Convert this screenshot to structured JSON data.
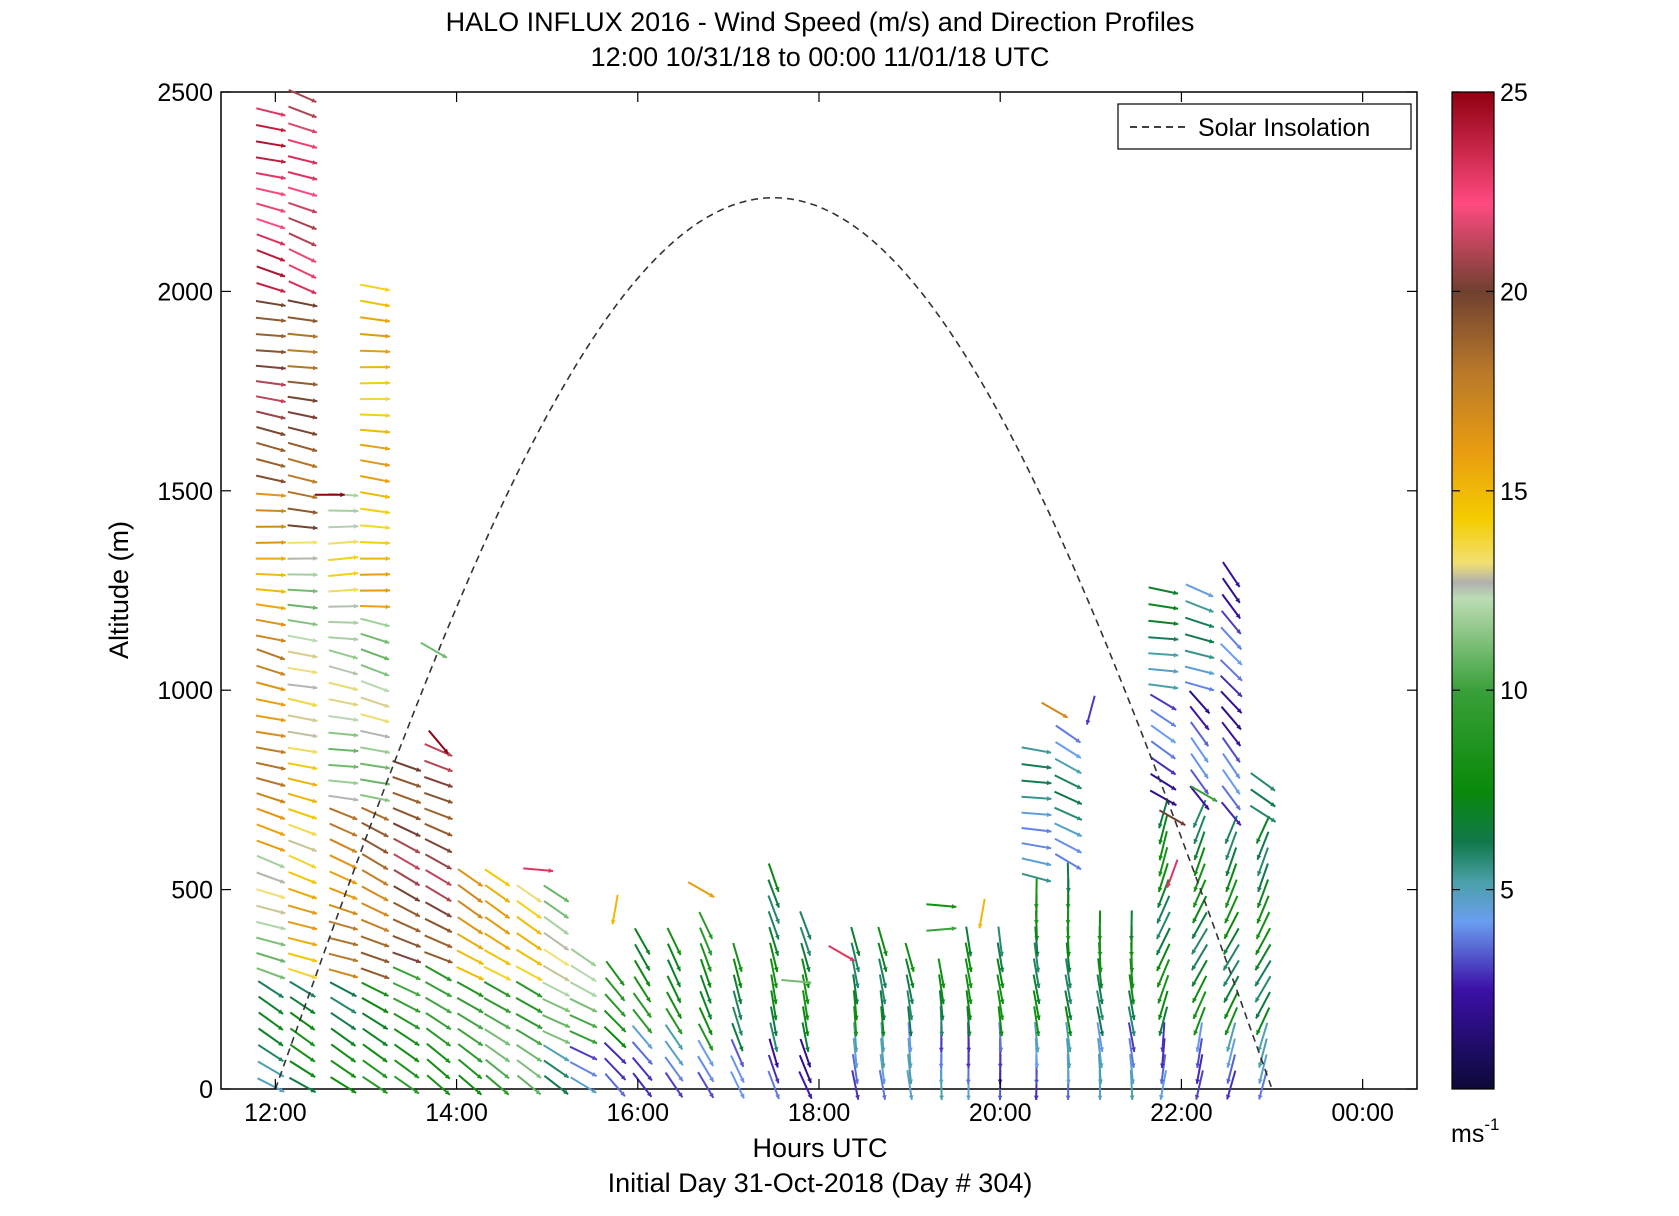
{
  "chart_data": {
    "type": "vector-field",
    "title": "HALO INFLUX 2016 - Wind Speed (m/s) and Direction Profiles",
    "subtitle": "12:00 10/31/18 to 00:00 11/01/18  UTC",
    "xlabel": "Hours UTC",
    "ylabel": "Altitude (m)",
    "footer": "Initial Day 31-Oct-2018 (Day # 304)",
    "xlim": [
      11.4,
      24.6
    ],
    "ylim": [
      0,
      2500
    ],
    "x_ticks": [
      {
        "value": 12,
        "label": "12:00"
      },
      {
        "value": 14,
        "label": "14:00"
      },
      {
        "value": 16,
        "label": "16:00"
      },
      {
        "value": 18,
        "label": "18:00"
      },
      {
        "value": 20,
        "label": "20:00"
      },
      {
        "value": 22,
        "label": "22:00"
      },
      {
        "value": 24,
        "label": "00:00"
      }
    ],
    "y_ticks": [
      {
        "value": 0,
        "label": "0"
      },
      {
        "value": 500,
        "label": "500"
      },
      {
        "value": 1000,
        "label": "1000"
      },
      {
        "value": 1500,
        "label": "1500"
      },
      {
        "value": 2000,
        "label": "2000"
      },
      {
        "value": 2500,
        "label": "2500"
      }
    ],
    "legend": {
      "position": "top-right",
      "entries": [
        {
          "name": "Solar Insolation",
          "style": "dashed",
          "color": "#000000"
        }
      ]
    },
    "solar_insolation": {
      "rise_hour": 12.0,
      "set_hour": 23.0,
      "peak_hour": 17.5,
      "peak_altitude": 2235
    },
    "colorbar": {
      "range": [
        0,
        25
      ],
      "ticks": [
        {
          "value": 5,
          "label": "5"
        },
        {
          "value": 10,
          "label": "10"
        },
        {
          "value": 15,
          "label": "15"
        },
        {
          "value": 20,
          "label": "20"
        },
        {
          "value": 25,
          "label": "25"
        }
      ],
      "unit": "ms",
      "unit_superscript": "-1",
      "stops": [
        {
          "v": 0,
          "c": "#0c0a38"
        },
        {
          "v": 2.5,
          "c": "#3c10a8"
        },
        {
          "v": 4.2,
          "c": "#6a9ef0"
        },
        {
          "v": 5.2,
          "c": "#4aa0a8"
        },
        {
          "v": 6.2,
          "c": "#10784a"
        },
        {
          "v": 7.5,
          "c": "#0a8a0a"
        },
        {
          "v": 10,
          "c": "#3aa03a"
        },
        {
          "v": 12.3,
          "c": "#bcdcb4"
        },
        {
          "v": 12.7,
          "c": "#b0b0b0"
        },
        {
          "v": 13.2,
          "c": "#f2e070"
        },
        {
          "v": 14.3,
          "c": "#f4cc00"
        },
        {
          "v": 16,
          "c": "#e89c10"
        },
        {
          "v": 18,
          "c": "#b8782a"
        },
        {
          "v": 20,
          "c": "#704030"
        },
        {
          "v": 22.2,
          "c": "#ff4a80"
        },
        {
          "v": 25,
          "c": "#900010"
        }
      ]
    },
    "profiles": [
      {
        "hour": 11.95,
        "alt_min": 0,
        "alt_max": 2480,
        "alt_step": 40,
        "segments": [
          [
            0,
            250,
            6,
            300
          ],
          [
            250,
            600,
            12,
            290
          ],
          [
            600,
            1100,
            17,
            285
          ],
          [
            1100,
            1500,
            16,
            275
          ],
          [
            1500,
            2000,
            20,
            280
          ],
          [
            2000,
            2480,
            23,
            285
          ]
        ]
      },
      {
        "hour": 12.3,
        "alt_min": 0,
        "alt_max": 2500,
        "alt_step": 40,
        "segments": [
          [
            0,
            250,
            7,
            300
          ],
          [
            250,
            600,
            15,
            290
          ],
          [
            600,
            1000,
            14,
            285
          ],
          [
            1000,
            1400,
            12,
            275
          ],
          [
            1400,
            2000,
            19,
            280
          ],
          [
            2000,
            2500,
            22,
            290
          ]
        ]
      },
      {
        "hour": 12.75,
        "alt_min": 0,
        "alt_max": 1500,
        "alt_step": 40,
        "segments": [
          [
            0,
            250,
            7,
            300
          ],
          [
            250,
            700,
            17,
            290
          ],
          [
            700,
            1100,
            12,
            280
          ],
          [
            1100,
            1500,
            13,
            270
          ]
        ]
      },
      {
        "hour": 13.1,
        "alt_min": 0,
        "alt_max": 2040,
        "alt_step": 40,
        "segments": [
          [
            0,
            250,
            8,
            300
          ],
          [
            250,
            700,
            18,
            295
          ],
          [
            700,
            1200,
            12,
            285
          ],
          [
            1200,
            2040,
            15,
            275
          ]
        ]
      },
      {
        "hour": 13.45,
        "alt_min": 0,
        "alt_max": 830,
        "alt_step": 40,
        "segments": [
          [
            0,
            300,
            9,
            300
          ],
          [
            300,
            830,
            20,
            295
          ]
        ]
      },
      {
        "hour": 13.8,
        "alt_min": 0,
        "alt_max": 870,
        "alt_step": 40,
        "segments": [
          [
            0,
            300,
            9,
            305
          ],
          [
            300,
            870,
            20,
            295
          ]
        ]
      },
      {
        "hour": 14.15,
        "alt_min": 0,
        "alt_max": 550,
        "alt_step": 40,
        "segments": [
          [
            0,
            250,
            9,
            305
          ],
          [
            250,
            550,
            16,
            300
          ]
        ]
      },
      {
        "hour": 14.45,
        "alt_min": 0,
        "alt_max": 540,
        "alt_step": 40,
        "segments": [
          [
            0,
            250,
            10,
            305
          ],
          [
            250,
            540,
            15,
            300
          ]
        ]
      },
      {
        "hour": 14.8,
        "alt_min": 0,
        "alt_max": 500,
        "alt_step": 40,
        "segments": [
          [
            0,
            250,
            10,
            305
          ],
          [
            250,
            500,
            14,
            300
          ]
        ]
      },
      {
        "hour": 15.1,
        "alt_min": 0,
        "alt_max": 490,
        "alt_step": 40,
        "segments": [
          [
            0,
            120,
            5,
            305
          ],
          [
            120,
            490,
            12,
            300
          ]
        ]
      },
      {
        "hour": 15.4,
        "alt_min": 0,
        "alt_max": 360,
        "alt_step": 40,
        "segments": [
          [
            0,
            120,
            4,
            300
          ],
          [
            120,
            360,
            11,
            300
          ]
        ]
      },
      {
        "hour": 15.75,
        "alt_min": 0,
        "alt_max": 300,
        "alt_step": 40,
        "segments": [
          [
            0,
            120,
            4,
            320
          ],
          [
            120,
            300,
            8,
            320
          ]
        ]
      },
      {
        "hour": 16.05,
        "alt_min": 0,
        "alt_max": 400,
        "alt_step": 40,
        "segments": [
          [
            0,
            150,
            4,
            325
          ],
          [
            150,
            400,
            8,
            325
          ]
        ]
      },
      {
        "hour": 16.4,
        "alt_min": 0,
        "alt_max": 400,
        "alt_step": 40,
        "segments": [
          [
            0,
            150,
            4,
            330
          ],
          [
            150,
            400,
            8,
            330
          ]
        ]
      },
      {
        "hour": 16.75,
        "alt_min": 0,
        "alt_max": 420,
        "alt_step": 40,
        "segments": [
          [
            0,
            120,
            3,
            335
          ],
          [
            120,
            420,
            8,
            335
          ]
        ]
      },
      {
        "hour": 17.1,
        "alt_min": 0,
        "alt_max": 360,
        "alt_step": 40,
        "segments": [
          [
            0,
            120,
            3,
            340
          ],
          [
            120,
            360,
            7,
            340
          ]
        ]
      },
      {
        "hour": 17.5,
        "alt_min": 0,
        "alt_max": 540,
        "alt_step": 40,
        "segments": [
          [
            0,
            120,
            3,
            345
          ],
          [
            120,
            540,
            7,
            345
          ]
        ]
      },
      {
        "hour": 17.85,
        "alt_min": 0,
        "alt_max": 420,
        "alt_step": 40,
        "segments": [
          [
            0,
            120,
            3,
            340
          ],
          [
            120,
            420,
            7,
            345
          ]
        ]
      },
      {
        "hour": 18.4,
        "alt_min": 0,
        "alt_max": 380,
        "alt_step": 40,
        "segments": [
          [
            0,
            150,
            4,
            350
          ],
          [
            150,
            380,
            7,
            350
          ]
        ]
      },
      {
        "hour": 18.7,
        "alt_min": 0,
        "alt_max": 400,
        "alt_step": 40,
        "segments": [
          [
            0,
            150,
            4,
            350
          ],
          [
            150,
            400,
            7,
            350
          ]
        ]
      },
      {
        "hour": 19.0,
        "alt_min": 0,
        "alt_max": 360,
        "alt_step": 40,
        "segments": [
          [
            0,
            150,
            4,
            350
          ],
          [
            150,
            360,
            7,
            350
          ]
        ]
      },
      {
        "hour": 19.35,
        "alt_min": 0,
        "alt_max": 320,
        "alt_step": 40,
        "segments": [
          [
            0,
            150,
            4,
            355
          ],
          [
            150,
            320,
            7,
            355
          ]
        ]
      },
      {
        "hour": 19.65,
        "alt_min": 0,
        "alt_max": 380,
        "alt_step": 40,
        "segments": [
          [
            0,
            150,
            4,
            355
          ],
          [
            150,
            380,
            7,
            355
          ]
        ]
      },
      {
        "hour": 20.0,
        "alt_min": 0,
        "alt_max": 400,
        "alt_step": 40,
        "segments": [
          [
            0,
            150,
            4,
            355
          ],
          [
            150,
            400,
            7,
            355
          ]
        ]
      },
      {
        "hour": 20.4,
        "alt_min": 0,
        "alt_max": 880,
        "alt_step": 40,
        "segments": [
          [
            0,
            150,
            4,
            355
          ],
          [
            150,
            500,
            7,
            355
          ],
          [
            500,
            880,
            5,
            280
          ]
        ]
      },
      {
        "hour": 20.75,
        "alt_min": 0,
        "alt_max": 900,
        "alt_step": 40,
        "segments": [
          [
            0,
            150,
            4,
            355
          ],
          [
            150,
            560,
            7,
            355
          ],
          [
            560,
            900,
            5,
            300
          ]
        ]
      },
      {
        "hour": 21.1,
        "alt_min": 0,
        "alt_max": 420,
        "alt_step": 40,
        "segments": [
          [
            0,
            150,
            4,
            355
          ],
          [
            150,
            420,
            7,
            355
          ]
        ]
      },
      {
        "hour": 21.45,
        "alt_min": 0,
        "alt_max": 420,
        "alt_step": 40,
        "segments": [
          [
            0,
            150,
            4,
            355
          ],
          [
            150,
            420,
            7,
            355
          ]
        ]
      },
      {
        "hour": 21.8,
        "alt_min": 0,
        "alt_max": 1270,
        "alt_step": 40,
        "segments": [
          [
            0,
            150,
            4,
            10
          ],
          [
            150,
            700,
            7,
            20
          ],
          [
            700,
            1000,
            3,
            300
          ],
          [
            1000,
            1270,
            6,
            280
          ]
        ]
      },
      {
        "hour": 22.2,
        "alt_min": 0,
        "alt_max": 1260,
        "alt_step": 40,
        "segments": [
          [
            0,
            150,
            4,
            15
          ],
          [
            150,
            700,
            7,
            25
          ],
          [
            700,
            1000,
            3,
            320
          ],
          [
            1000,
            1260,
            5,
            290
          ]
        ]
      },
      {
        "hour": 22.55,
        "alt_min": 0,
        "alt_max": 1290,
        "alt_step": 40,
        "segments": [
          [
            0,
            150,
            4,
            20
          ],
          [
            150,
            650,
            7,
            25
          ],
          [
            650,
            1290,
            3,
            320
          ]
        ]
      },
      {
        "hour": 22.9,
        "alt_min": 0,
        "alt_max": 780,
        "alt_step": 40,
        "segments": [
          [
            0,
            150,
            4,
            20
          ],
          [
            150,
            650,
            7,
            25
          ],
          [
            650,
            780,
            5,
            300
          ]
        ]
      }
    ],
    "extra_vectors": [
      {
        "hour": 12.6,
        "alt": 1490,
        "speed": 25,
        "dir": 270
      },
      {
        "hour": 13.8,
        "alt": 870,
        "speed": 25,
        "dir": 320
      },
      {
        "hour": 14.9,
        "alt": 550,
        "speed": 23,
        "dir": 275
      },
      {
        "hour": 13.75,
        "alt": 1100,
        "speed": 11,
        "dir": 300
      },
      {
        "hour": 15.75,
        "alt": 450,
        "speed": 15,
        "dir": 10
      },
      {
        "hour": 16.7,
        "alt": 500,
        "speed": 16,
        "dir": 300
      },
      {
        "hour": 18.25,
        "alt": 340,
        "speed": 23,
        "dir": 300
      },
      {
        "hour": 17.75,
        "alt": 270,
        "speed": 11,
        "dir": 275
      },
      {
        "hour": 19.35,
        "alt": 460,
        "speed": 8,
        "dir": 275
      },
      {
        "hour": 19.35,
        "alt": 400,
        "speed": 10,
        "dir": 265
      },
      {
        "hour": 19.8,
        "alt": 440,
        "speed": 15,
        "dir": 10
      },
      {
        "hour": 20.6,
        "alt": 950,
        "speed": 17,
        "dir": 300
      },
      {
        "hour": 21.0,
        "alt": 950,
        "speed": 3,
        "dir": 15
      },
      {
        "hour": 22.25,
        "alt": 740,
        "speed": 10,
        "dir": 300
      },
      {
        "hour": 21.9,
        "alt": 680,
        "speed": 20,
        "dir": 300
      },
      {
        "hour": 21.9,
        "alt": 540,
        "speed": 23,
        "dir": 20
      }
    ]
  }
}
